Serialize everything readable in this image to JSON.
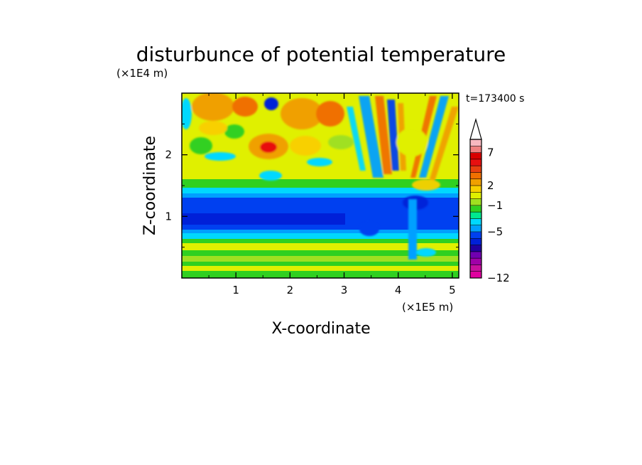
{
  "chart_data": {
    "type": "heatmap",
    "title": "disturbunce of potential temperature",
    "xlabel": "X-coordinate",
    "ylabel": "Z-coordinate",
    "x_unit": "(×1E5 m)",
    "y_unit": "(×1E4 m)",
    "time_label": "t=173400 s",
    "xlim": [
      0,
      5.12
    ],
    "ylim": [
      0,
      3.0
    ],
    "x_ticks": [
      "1",
      "2",
      "3",
      "4",
      "5"
    ],
    "y_ticks": [
      "1",
      "2"
    ],
    "colorbar": {
      "extend": "max",
      "tick_labels": [
        "7",
        "2",
        "−1",
        "−5",
        "−12"
      ],
      "levels": [
        -12,
        -11,
        -10,
        -9,
        -8,
        -7,
        -6,
        -5,
        -4,
        -3,
        -2,
        -1,
        0,
        1,
        2,
        3,
        4,
        5,
        6,
        7,
        8,
        9
      ],
      "colors": [
        "#e0009f",
        "#c8109f",
        "#a000a8",
        "#7000b0",
        "#2000a0",
        "#0020d8",
        "#0040f0",
        "#00a0ff",
        "#00d8ff",
        "#00e890",
        "#30d020",
        "#a0e020",
        "#e0f000",
        "#f8d000",
        "#f0a000",
        "#f07000",
        "#e84010",
        "#e81010",
        "#d80000",
        "#f08080",
        "#f8b8c0"
      ]
    },
    "description_bands": [
      {
        "z_range": [
          0,
          0.4
        ],
        "pattern": "mixed green/yellow/cyan small-scale"
      },
      {
        "z_range": [
          0.75,
          1.35
        ],
        "pattern": "strong negative (blue) layer"
      },
      {
        "z_range": [
          1.4,
          3.0
        ],
        "pattern": "positive/negative wave pattern, yellow-orange dominant"
      }
    ]
  }
}
